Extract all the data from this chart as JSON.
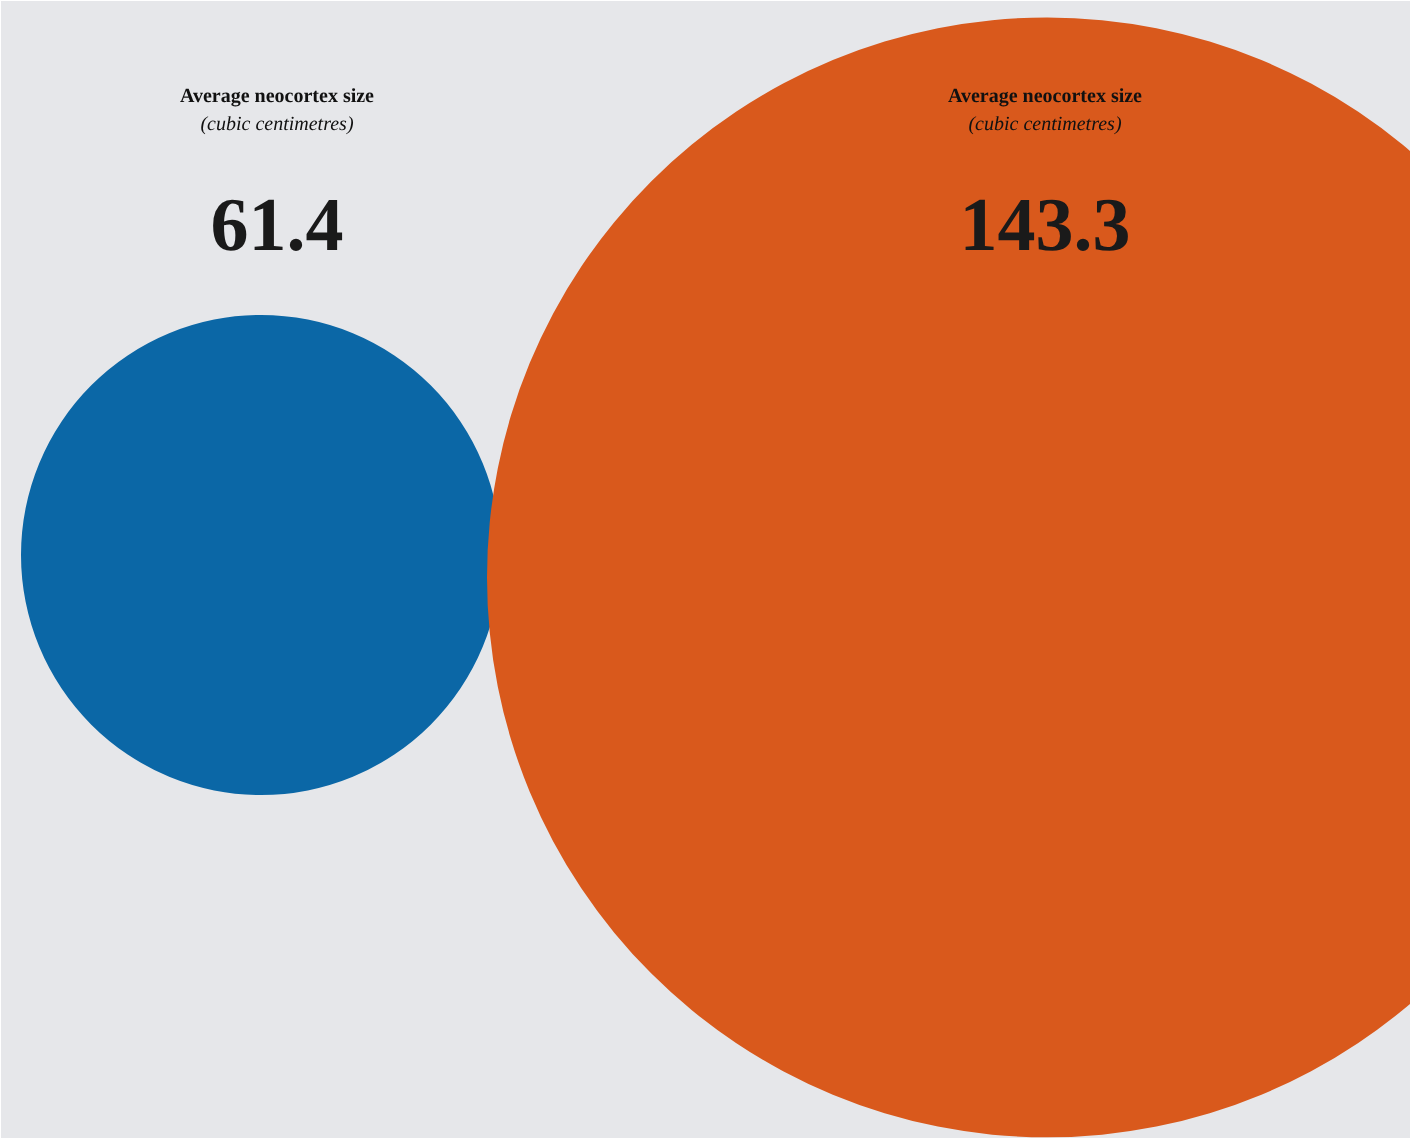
{
  "chart_data": {
    "type": "other",
    "categories": [
      null,
      null
    ],
    "values": [
      61.4,
      143.3
    ],
    "colors": [
      "#0b67a6",
      "#d9591c"
    ],
    "data_labels": true,
    "annotations": [
      "Average neocortex size",
      "(cubic centimetres)",
      "Average neocortex size",
      "(cubic centimetres)"
    ]
  }
}
